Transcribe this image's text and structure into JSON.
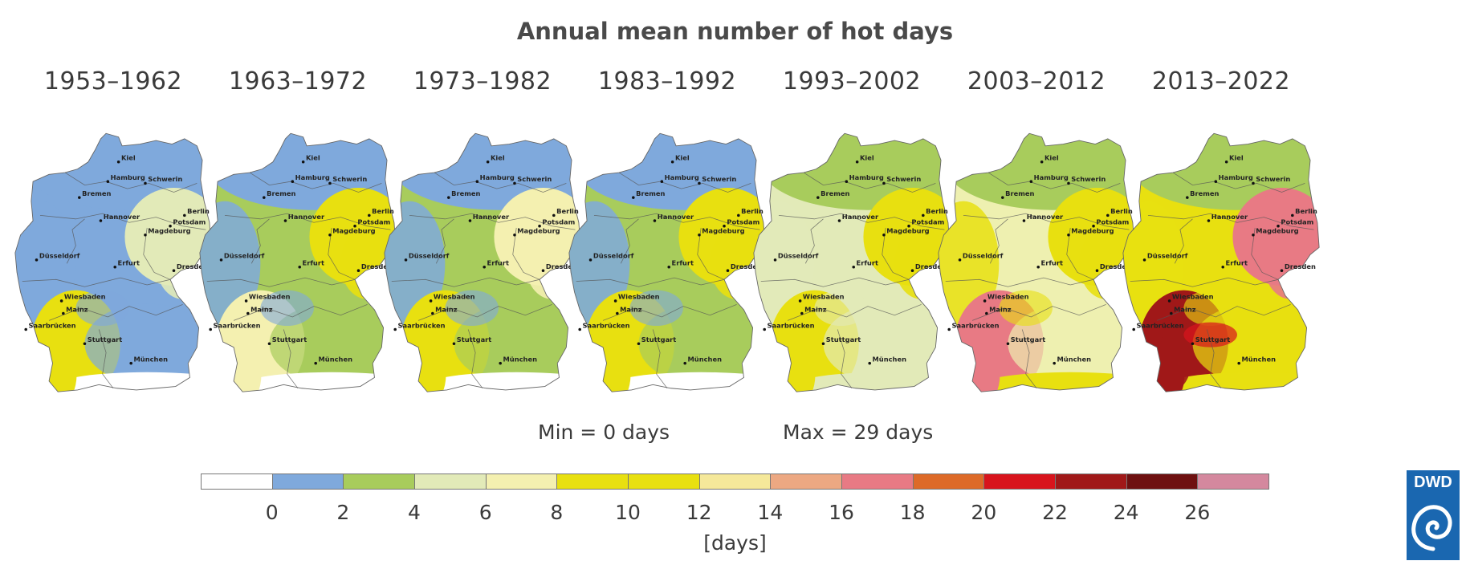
{
  "title": "Annual mean number of hot days",
  "periods": [
    "1953–1962",
    "1963–1972",
    "1973–1982",
    "1983–1992",
    "1993–2002",
    "2003–2012",
    "2013–2022"
  ],
  "min_label": "Min = 0 days",
  "max_label": "Max = 29 days",
  "unit_label": "[days]",
  "logo_text": "DWD",
  "cities": [
    "Kiel",
    "Hamburg",
    "Schwerin",
    "Bremen",
    "Berlin",
    "Hannover",
    "Potsdam",
    "Magdeburg",
    "Düsseldorf",
    "Erfurt",
    "Dresden",
    "Wiesbaden",
    "Mainz",
    "Saarbrücken",
    "Stuttgart",
    "München"
  ],
  "legend": {
    "colors": [
      "#ffffff",
      "#7fa9dc",
      "#a8cc5c",
      "#e2eab8",
      "#f4f0b0",
      "#e8e010",
      "#e8e010",
      "#f5e89a",
      "#eca882",
      "#e87a84",
      "#dd6a28",
      "#d8141c",
      "#a01818",
      "#6e1010",
      "#d4889e"
    ],
    "ticks": [
      "0",
      "2",
      "4",
      "6",
      "8",
      "10",
      "12",
      "14",
      "16",
      "18",
      "20",
      "22",
      "24",
      "26"
    ]
  },
  "map_colors": {
    "base": [
      "#7fa9dc",
      "#a8cc5c",
      "#a8cc5c",
      "#a8cc5c",
      "#e2eab8",
      "#eef0b0",
      "#e8e010"
    ],
    "north": [
      "#7fa9dc",
      "#7fa9dc",
      "#7fa9dc",
      "#7fa9dc",
      "#a8cc5c",
      "#a8cc5c",
      "#a8cc5c"
    ],
    "east": [
      "#e2eab8",
      "#e8e010",
      "#f4f0b0",
      "#e8e010",
      "#e8e010",
      "#e8e010",
      "#e87a84"
    ],
    "rhine": [
      "#e8e010",
      "#f4f0b0",
      "#e8e010",
      "#e8e010",
      "#e8e010",
      "#e87a84",
      "#a01818"
    ],
    "alps": [
      "#ffffff",
      "#ffffff",
      "#ffffff",
      "#ffffff",
      "#e2eab8",
      "#e8e010",
      "#e8e010"
    ],
    "south": [
      "#7fa9dc",
      "#7fa9dc",
      "#7fa9dc",
      "#7fa9dc",
      "#e2eab8",
      "#e8e010",
      "#e8e010"
    ]
  }
}
